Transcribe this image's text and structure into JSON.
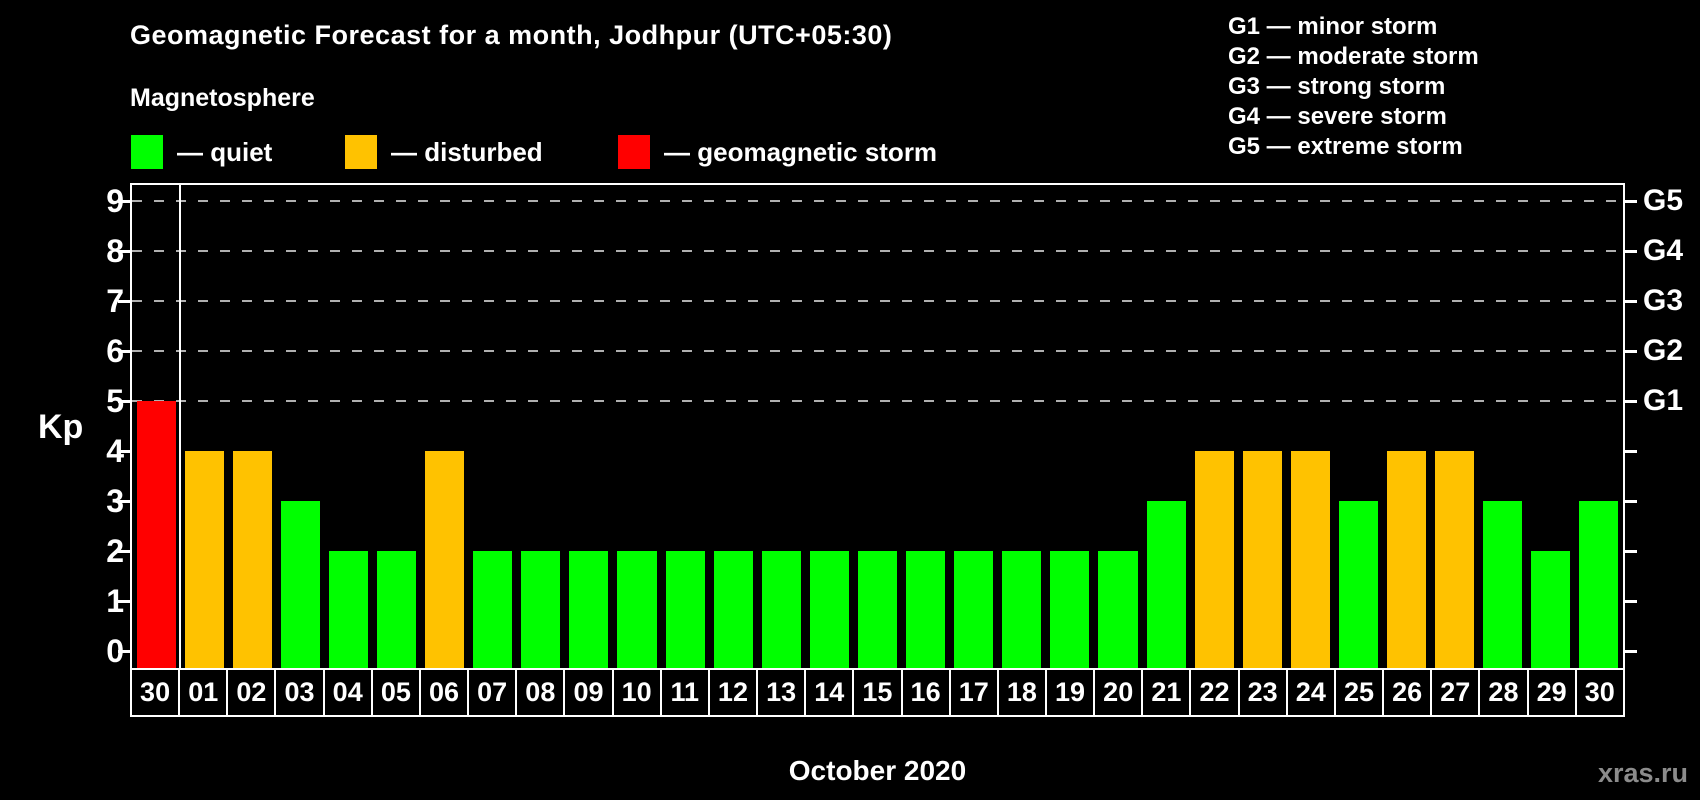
{
  "title": "Geomagnetic Forecast for a month, Jodhpur (UTC+05:30)",
  "subtitle": "Magnetosphere",
  "legend": {
    "items": [
      {
        "name": "quiet",
        "label": "— quiet",
        "color": "#00ff00"
      },
      {
        "name": "disturbed",
        "label": "— disturbed",
        "color": "#ffc200"
      },
      {
        "name": "storm",
        "label": "— geomagnetic storm",
        "color": "#ff0000"
      }
    ]
  },
  "storm_scale_legend": [
    "G1 — minor storm",
    "G2 — moderate storm",
    "G3 — strong storm",
    "G4 — severe storm",
    "G5 — extreme storm"
  ],
  "watermark": "xras.ru",
  "chart_data": {
    "type": "bar",
    "title": "Geomagnetic Forecast for a month, Jodhpur (UTC+05:30)",
    "xlabel": "October 2020",
    "ylabel": "Kp",
    "ylim": [
      0,
      9
    ],
    "y_ticks": [
      0,
      1,
      2,
      3,
      4,
      5,
      6,
      7,
      8,
      9
    ],
    "gridlines_at": [
      5,
      6,
      7,
      8,
      9
    ],
    "grid": "dashed-horizontal",
    "categories": [
      "30",
      "01",
      "02",
      "03",
      "04",
      "05",
      "06",
      "07",
      "08",
      "09",
      "10",
      "11",
      "12",
      "13",
      "14",
      "15",
      "16",
      "17",
      "18",
      "19",
      "20",
      "21",
      "22",
      "23",
      "24",
      "25",
      "26",
      "27",
      "28",
      "29",
      "30"
    ],
    "values": [
      5,
      4,
      4,
      3,
      2,
      2,
      4,
      2,
      2,
      2,
      2,
      2,
      2,
      2,
      2,
      2,
      2,
      2,
      2,
      2,
      2,
      3,
      4,
      4,
      4,
      3,
      4,
      4,
      3,
      2,
      3
    ],
    "statuses": [
      "storm",
      "disturbed",
      "disturbed",
      "quiet",
      "quiet",
      "quiet",
      "disturbed",
      "quiet",
      "quiet",
      "quiet",
      "quiet",
      "quiet",
      "quiet",
      "quiet",
      "quiet",
      "quiet",
      "quiet",
      "quiet",
      "quiet",
      "quiet",
      "quiet",
      "quiet",
      "disturbed",
      "disturbed",
      "disturbed",
      "quiet",
      "disturbed",
      "disturbed",
      "quiet",
      "quiet",
      "quiet"
    ],
    "status_colors": {
      "quiet": "#00ff00",
      "disturbed": "#ffc200",
      "storm": "#ff0000"
    },
    "right_axis_labels": [
      {
        "label": "G1",
        "kp": 5
      },
      {
        "label": "G2",
        "kp": 6
      },
      {
        "label": "G3",
        "kp": 7
      },
      {
        "label": "G4",
        "kp": 8
      },
      {
        "label": "G5",
        "kp": 9
      }
    ],
    "separator_after_index": 0,
    "background_color": "#000000",
    "axis_color": "#ffffff",
    "gridline_color": "#b0b0b0"
  }
}
